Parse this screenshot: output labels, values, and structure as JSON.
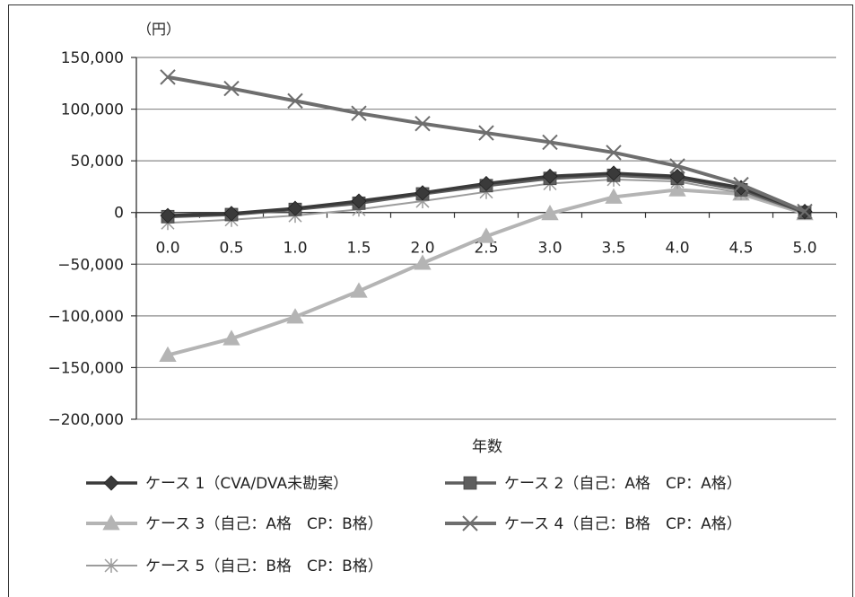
{
  "chart_data": {
    "type": "line",
    "unit_label": "（円）",
    "xlabel": "年数",
    "ylabel": "",
    "ylim": [
      -200000,
      150000
    ],
    "yticks": [
      150000,
      100000,
      50000,
      0,
      -50000,
      -100000,
      -150000,
      -200000
    ],
    "ytick_labels": [
      "150,000",
      "100,000",
      "50,000",
      "0",
      "−50,000",
      "−100,000",
      "−150,000",
      "−200,000"
    ],
    "categories": [
      "0.0",
      "0.5",
      "1.0",
      "1.5",
      "2.0",
      "2.5",
      "3.0",
      "3.5",
      "4.0",
      "4.5",
      "5.0"
    ],
    "grid": true,
    "legend_position": "bottom",
    "series": [
      {
        "name": "ケース 1（CVA/DVA未勘案）",
        "marker": "diamond",
        "color": "#3a3a3a",
        "values": [
          -3000,
          -1000,
          4000,
          11000,
          19000,
          28000,
          35000,
          38000,
          35000,
          24000,
          1000
        ]
      },
      {
        "name": "ケース 2（自己：A格　CP：A格）",
        "marker": "square",
        "color": "#5e5e5e",
        "values": [
          -4000,
          -2000,
          3000,
          9000,
          18000,
          26000,
          33000,
          36000,
          33000,
          22000,
          0
        ]
      },
      {
        "name": "ケース 3（自己：A格　CP：B格）",
        "marker": "triangle",
        "color": "#b4b4b4",
        "values": [
          -138000,
          -122000,
          -101000,
          -76000,
          -49000,
          -23000,
          -1000,
          15000,
          22000,
          18000,
          -1000
        ]
      },
      {
        "name": "ケース 4（自己：B格　CP：A格）",
        "marker": "x",
        "color": "#6e6e6e",
        "values": [
          131000,
          120000,
          108000,
          96000,
          86000,
          77000,
          68000,
          58000,
          45000,
          27000,
          1000
        ]
      },
      {
        "name": "ケース 5（自己：B格　CP：B格）",
        "marker": "star",
        "color": "#9c9c9c",
        "values": [
          -10000,
          -7000,
          -3000,
          3000,
          11000,
          20000,
          28000,
          32000,
          30000,
          19000,
          0
        ]
      }
    ]
  }
}
